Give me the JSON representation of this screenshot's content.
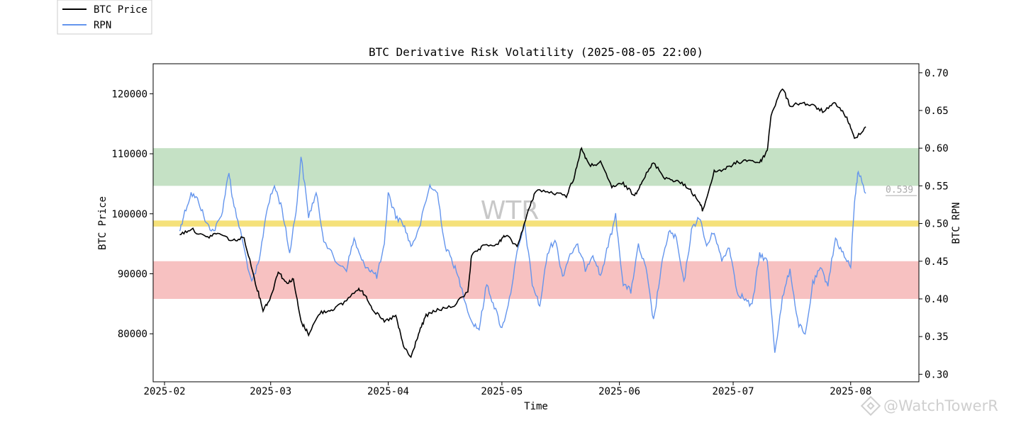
{
  "chart_data": {
    "type": "line",
    "title": "BTC Derivative Risk Volatility (2025-08-05 22:00)",
    "xlabel": "Time",
    "ylabel_left": "BTC Price",
    "ylabel_right": "BTC RPN",
    "x_ticks": [
      "2025-02",
      "2025-03",
      "2025-04",
      "2025-05",
      "2025-06",
      "2025-07",
      "2025-08"
    ],
    "y_left_ticks": [
      "80000",
      "90000",
      "100000",
      "110000",
      "120000"
    ],
    "y_right_ticks": [
      "0.30",
      "0.35",
      "0.40",
      "0.45",
      "0.50",
      "0.55",
      "0.60",
      "0.65",
      "0.70"
    ],
    "xlim": [
      "2025-01-29",
      "2025-08-19"
    ],
    "ylim_left": [
      72000,
      125000
    ],
    "ylim_right": [
      0.29,
      0.712
    ],
    "grid": false,
    "legend_position": "top-left (outside plot)",
    "bands": [
      {
        "color": "#c5e1c5",
        "from": 0.55,
        "to": 0.6
      },
      {
        "color": "#f5e17a",
        "from": 0.496,
        "to": 0.504
      },
      {
        "color": "#f7c1c1",
        "from": 0.4,
        "to": 0.45
      }
    ],
    "last_value_label": "0.539",
    "watermark": "WTR",
    "series": [
      {
        "name": "BTC Price",
        "color": "#000000",
        "axis": "left",
        "x": [
          "2025-02-05",
          "2025-02-08",
          "2025-02-12",
          "2025-02-15",
          "2025-02-19",
          "2025-02-22",
          "2025-02-25",
          "2025-02-27",
          "2025-03-01",
          "2025-03-03",
          "2025-03-05",
          "2025-03-07",
          "2025-03-09",
          "2025-03-11",
          "2025-03-14",
          "2025-03-17",
          "2025-03-20",
          "2025-03-24",
          "2025-03-26",
          "2025-03-28",
          "2025-03-31",
          "2025-04-03",
          "2025-04-05",
          "2025-04-07",
          "2025-04-09",
          "2025-04-11",
          "2025-04-14",
          "2025-04-18",
          "2025-04-22",
          "2025-04-23",
          "2025-04-26",
          "2025-04-30",
          "2025-05-02",
          "2025-05-05",
          "2025-05-08",
          "2025-05-10",
          "2025-05-14",
          "2025-05-18",
          "2025-05-20",
          "2025-05-22",
          "2025-05-24",
          "2025-05-27",
          "2025-05-30",
          "2025-06-02",
          "2025-06-05",
          "2025-06-07",
          "2025-06-10",
          "2025-06-13",
          "2025-06-16",
          "2025-06-19",
          "2025-06-22",
          "2025-06-23",
          "2025-06-26",
          "2025-06-29",
          "2025-07-02",
          "2025-07-05",
          "2025-07-08",
          "2025-07-10",
          "2025-07-11",
          "2025-07-14",
          "2025-07-16",
          "2025-07-19",
          "2025-07-22",
          "2025-07-25",
          "2025-07-28",
          "2025-07-31",
          "2025-08-02",
          "2025-08-05"
        ],
        "values": [
          96500,
          97500,
          96000,
          96800,
          95500,
          96000,
          88500,
          84000,
          86000,
          90500,
          88500,
          89000,
          82000,
          80000,
          83500,
          84000,
          85000,
          87500,
          86500,
          84000,
          82000,
          83000,
          78000,
          76000,
          80000,
          83000,
          84000,
          84500,
          87000,
          93000,
          94500,
          95000,
          96500,
          94500,
          100500,
          104000,
          103500,
          103000,
          106000,
          111000,
          108000,
          108500,
          104500,
          105000,
          103000,
          105500,
          108500,
          106000,
          105500,
          104500,
          102000,
          100500,
          107000,
          107500,
          108500,
          109000,
          108500,
          110500,
          116500,
          121000,
          118000,
          118500,
          118000,
          117000,
          118500,
          116000,
          112500,
          114500
        ]
      },
      {
        "name": "RPN",
        "color": "#6495ed",
        "axis": "right",
        "x": [
          "2025-02-05",
          "2025-02-06",
          "2025-02-08",
          "2025-02-10",
          "2025-02-12",
          "2025-02-14",
          "2025-02-16",
          "2025-02-18",
          "2025-02-19",
          "2025-02-21",
          "2025-02-24",
          "2025-02-26",
          "2025-02-28",
          "2025-03-02",
          "2025-03-04",
          "2025-03-06",
          "2025-03-08",
          "2025-03-09",
          "2025-03-11",
          "2025-03-13",
          "2025-03-15",
          "2025-03-18",
          "2025-03-21",
          "2025-03-23",
          "2025-03-25",
          "2025-03-27",
          "2025-03-29",
          "2025-03-31",
          "2025-04-01",
          "2025-04-03",
          "2025-04-05",
          "2025-04-07",
          "2025-04-09",
          "2025-04-12",
          "2025-04-14",
          "2025-04-16",
          "2025-04-18",
          "2025-04-20",
          "2025-04-23",
          "2025-04-25",
          "2025-04-27",
          "2025-04-29",
          "2025-05-01",
          "2025-05-03",
          "2025-05-05",
          "2025-05-07",
          "2025-05-09",
          "2025-05-11",
          "2025-05-13",
          "2025-05-15",
          "2025-05-17",
          "2025-05-19",
          "2025-05-21",
          "2025-05-23",
          "2025-05-25",
          "2025-05-27",
          "2025-05-29",
          "2025-05-31",
          "2025-06-02",
          "2025-06-04",
          "2025-06-06",
          "2025-06-08",
          "2025-06-10",
          "2025-06-12",
          "2025-06-14",
          "2025-06-16",
          "2025-06-18",
          "2025-06-20",
          "2025-06-22",
          "2025-06-24",
          "2025-06-26",
          "2025-06-28",
          "2025-06-30",
          "2025-07-02",
          "2025-07-04",
          "2025-07-06",
          "2025-07-08",
          "2025-07-10",
          "2025-07-12",
          "2025-07-14",
          "2025-07-16",
          "2025-07-18",
          "2025-07-20",
          "2025-07-22",
          "2025-07-24",
          "2025-07-26",
          "2025-07-28",
          "2025-07-30",
          "2025-08-01",
          "2025-08-02",
          "2025-08-03",
          "2025-08-05"
        ],
        "values": [
          0.49,
          0.51,
          0.54,
          0.53,
          0.5,
          0.49,
          0.51,
          0.57,
          0.53,
          0.49,
          0.42,
          0.45,
          0.52,
          0.55,
          0.52,
          0.46,
          0.53,
          0.59,
          0.51,
          0.54,
          0.48,
          0.45,
          0.44,
          0.48,
          0.45,
          0.44,
          0.43,
          0.47,
          0.54,
          0.51,
          0.5,
          0.47,
          0.49,
          0.55,
          0.54,
          0.47,
          0.45,
          0.42,
          0.37,
          0.36,
          0.42,
          0.39,
          0.36,
          0.4,
          0.46,
          0.5,
          0.42,
          0.39,
          0.46,
          0.48,
          0.43,
          0.46,
          0.47,
          0.44,
          0.46,
          0.43,
          0.47,
          0.51,
          0.42,
          0.41,
          0.47,
          0.44,
          0.37,
          0.44,
          0.49,
          0.48,
          0.42,
          0.49,
          0.51,
          0.47,
          0.49,
          0.45,
          0.47,
          0.41,
          0.4,
          0.39,
          0.46,
          0.45,
          0.33,
          0.4,
          0.44,
          0.37,
          0.35,
          0.42,
          0.44,
          0.42,
          0.48,
          0.46,
          0.44,
          0.53,
          0.57,
          0.54
        ]
      }
    ]
  }
}
